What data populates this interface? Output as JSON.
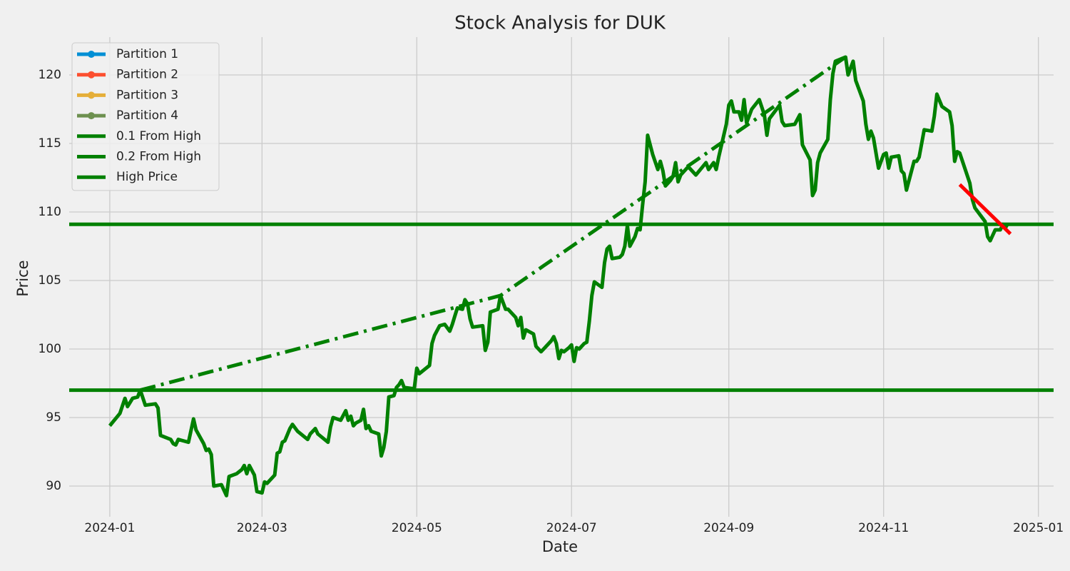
{
  "chart_data": {
    "type": "line",
    "title": "Stock Analysis for DUK",
    "xlabel": "Date",
    "ylabel": "Price",
    "xlim": [
      "2023-12-16",
      "2025-01-07"
    ],
    "ylim": [
      87.76,
      122.76
    ],
    "xticks": [
      {
        "value": "2024-01-01",
        "label": "2024-01"
      },
      {
        "value": "2024-03-01",
        "label": "2024-03"
      },
      {
        "value": "2024-05-01",
        "label": "2024-05"
      },
      {
        "value": "2024-07-01",
        "label": "2024-07"
      },
      {
        "value": "2024-09-01",
        "label": "2024-09"
      },
      {
        "value": "2024-11-01",
        "label": "2024-11"
      },
      {
        "value": "2025-01-01",
        "label": "2025-01"
      }
    ],
    "yticks": [
      90,
      95,
      100,
      105,
      110,
      115,
      120
    ],
    "grid": true,
    "legend_position": "upper left",
    "legend": [
      {
        "name": "Partition 1",
        "color": "#008fd5",
        "marker": "o"
      },
      {
        "name": "Partition 2",
        "color": "#fc4f30",
        "marker": "o"
      },
      {
        "name": "Partition 3",
        "color": "#e5ae38",
        "marker": "o"
      },
      {
        "name": "Partition 4",
        "color": "#6d904f",
        "marker": "o"
      }
    ],
    "hlines": [
      {
        "name": "0.1 From High",
        "value": 109.1,
        "color": "green"
      },
      {
        "name": "0.2 From High",
        "value": 97.0,
        "color": "green"
      }
    ],
    "series": [
      {
        "color": "green",
        "style": "solid",
        "x": [
          "2024-01-01",
          "2024-01-05",
          "2024-01-07",
          "2024-01-08",
          "2024-01-10",
          "2024-01-12",
          "2024-01-13",
          "2024-01-15",
          "2024-01-19",
          "2024-01-20",
          "2024-01-21",
          "2024-01-25",
          "2024-01-26",
          "2024-01-27",
          "2024-01-28",
          "2024-02-01",
          "2024-02-03",
          "2024-02-04",
          "2024-02-07",
          "2024-02-08",
          "2024-02-09",
          "2024-02-10",
          "2024-02-11",
          "2024-02-14",
          "2024-02-16",
          "2024-02-17",
          "2024-02-20",
          "2024-02-22",
          "2024-02-23",
          "2024-02-24",
          "2024-02-25",
          "2024-02-27",
          "2024-02-28",
          "2024-03-01",
          "2024-03-02",
          "2024-03-03",
          "2024-03-06",
          "2024-03-07",
          "2024-03-08",
          "2024-03-09",
          "2024-03-10",
          "2024-03-12",
          "2024-03-13",
          "2024-03-15",
          "2024-03-19",
          "2024-03-20",
          "2024-03-22",
          "2024-03-23",
          "2024-03-27",
          "2024-03-28",
          "2024-03-29",
          "2024-04-01",
          "2024-04-03",
          "2024-04-04",
          "2024-04-05",
          "2024-04-06",
          "2024-04-07",
          "2024-04-09",
          "2024-04-10",
          "2024-04-11",
          "2024-04-12",
          "2024-04-13",
          "2024-04-16",
          "2024-04-17",
          "2024-04-18",
          "2024-04-19",
          "2024-04-20",
          "2024-04-22",
          "2024-04-23",
          "2024-04-24",
          "2024-04-25",
          "2024-04-26",
          "2024-04-30",
          "2024-05-01",
          "2024-05-02",
          "2024-05-04",
          "2024-05-06",
          "2024-05-07",
          "2024-05-08",
          "2024-05-10",
          "2024-05-12",
          "2024-05-14",
          "2024-05-15",
          "2024-05-16",
          "2024-05-17",
          "2024-05-19",
          "2024-05-20",
          "2024-05-21",
          "2024-05-22",
          "2024-05-23",
          "2024-05-27",
          "2024-05-28",
          "2024-05-29",
          "2024-05-30",
          "2024-06-02",
          "2024-06-03",
          "2024-06-05",
          "2024-06-06",
          "2024-06-09",
          "2024-06-10",
          "2024-06-11",
          "2024-06-12",
          "2024-06-13",
          "2024-06-16",
          "2024-06-17",
          "2024-06-19",
          "2024-06-23",
          "2024-06-24",
          "2024-06-25",
          "2024-06-26",
          "2024-06-27",
          "2024-06-28",
          "2024-06-30",
          "2024-07-01",
          "2024-07-02",
          "2024-07-03",
          "2024-07-04",
          "2024-07-06",
          "2024-07-07",
          "2024-07-08",
          "2024-07-09",
          "2024-07-10",
          "2024-07-13",
          "2024-07-14",
          "2024-07-15",
          "2024-07-16",
          "2024-07-17",
          "2024-07-20",
          "2024-07-21",
          "2024-07-22",
          "2024-07-23",
          "2024-07-24",
          "2024-07-26",
          "2024-07-27",
          "2024-07-28",
          "2024-07-29",
          "2024-07-30",
          "2024-07-31",
          "2024-08-02",
          "2024-08-04",
          "2024-08-05",
          "2024-08-06",
          "2024-08-07",
          "2024-08-09",
          "2024-08-10",
          "2024-08-11",
          "2024-08-12",
          "2024-08-13",
          "2024-08-16",
          "2024-08-17",
          "2024-08-19",
          "2024-08-23",
          "2024-08-24",
          "2024-08-26",
          "2024-08-27",
          "2024-08-28",
          "2024-08-31",
          "2024-09-01",
          "2024-09-02",
          "2024-09-03",
          "2024-09-05",
          "2024-09-06",
          "2024-09-07",
          "2024-09-08",
          "2024-09-09",
          "2024-09-10",
          "2024-09-13",
          "2024-09-15",
          "2024-09-16",
          "2024-09-17",
          "2024-09-21",
          "2024-09-22",
          "2024-09-23",
          "2024-09-27",
          "2024-09-29",
          "2024-09-30",
          "2024-10-03",
          "2024-10-04",
          "2024-10-05",
          "2024-10-06",
          "2024-10-07",
          "2024-10-10",
          "2024-10-11",
          "2024-10-12",
          "2024-10-13",
          "2024-10-17",
          "2024-10-18",
          "2024-10-20",
          "2024-10-21",
          "2024-10-24",
          "2024-10-25",
          "2024-10-26",
          "2024-10-27",
          "2024-10-28",
          "2024-10-30",
          "2024-11-01",
          "2024-11-02",
          "2024-11-03",
          "2024-11-04",
          "2024-11-07",
          "2024-11-08",
          "2024-11-09",
          "2024-11-10",
          "2024-11-11",
          "2024-11-13",
          "2024-11-14",
          "2024-11-15",
          "2024-11-17",
          "2024-11-20",
          "2024-11-21",
          "2024-11-22",
          "2024-11-24",
          "2024-11-27",
          "2024-11-28",
          "2024-11-29",
          "2024-11-30",
          "2024-12-01",
          "2024-12-05",
          "2024-12-06",
          "2024-12-07",
          "2024-12-11",
          "2024-12-12",
          "2024-12-13",
          "2024-12-15",
          "2024-12-17",
          "2024-12-18",
          "2024-12-20"
        ],
        "values": [
          94.4,
          95.3,
          96.4,
          95.8,
          96.4,
          96.5,
          97.0,
          95.9,
          96.0,
          95.7,
          93.7,
          93.4,
          93.1,
          93.0,
          93.4,
          93.2,
          94.9,
          94.1,
          93.1,
          92.6,
          92.7,
          92.3,
          90.0,
          90.1,
          89.3,
          90.7,
          90.9,
          91.2,
          91.5,
          90.9,
          91.5,
          90.8,
          89.6,
          89.5,
          90.3,
          90.2,
          90.8,
          92.4,
          92.5,
          93.2,
          93.3,
          94.2,
          94.5,
          94.0,
          93.4,
          93.8,
          94.2,
          93.8,
          93.2,
          94.3,
          95.0,
          94.8,
          95.5,
          94.8,
          95.1,
          94.4,
          94.6,
          94.8,
          95.6,
          94.2,
          94.4,
          94.0,
          93.8,
          92.2,
          92.8,
          94.0,
          96.5,
          96.6,
          97.2,
          97.4,
          97.7,
          97.2,
          97.1,
          98.6,
          98.2,
          98.5,
          98.8,
          100.4,
          101.0,
          101.7,
          101.8,
          101.3,
          101.8,
          102.4,
          103.0,
          102.9,
          103.6,
          103.3,
          102.2,
          101.6,
          101.7,
          99.9,
          100.5,
          102.7,
          102.9,
          103.9,
          102.9,
          102.9,
          102.3,
          101.7,
          102.3,
          100.8,
          101.4,
          101.1,
          100.2,
          99.8,
          100.6,
          100.9,
          100.4,
          99.3,
          99.9,
          99.8,
          100.1,
          100.3,
          99.1,
          100.1,
          100.0,
          100.4,
          100.5,
          102.0,
          103.9,
          104.9,
          104.5,
          106.3,
          107.3,
          107.5,
          106.6,
          106.7,
          106.9,
          107.5,
          109.0,
          107.5,
          108.2,
          108.8,
          108.7,
          110.5,
          112.2,
          115.6,
          114.2,
          113.1,
          113.7,
          113.0,
          111.9,
          112.3,
          112.6,
          113.6,
          112.2,
          112.7,
          113.3,
          113.1,
          112.7,
          113.6,
          113.1,
          113.6,
          113.1,
          114.0,
          116.4,
          117.8,
          118.1,
          117.3,
          117.3,
          116.7,
          118.2,
          116.5,
          117.0,
          117.5,
          118.2,
          117.1,
          115.6,
          116.8,
          117.8,
          116.6,
          116.3,
          116.4,
          117.1,
          114.9,
          113.8,
          111.2,
          111.6,
          113.6,
          114.3,
          115.3,
          118.2,
          120.1,
          121.0,
          121.3,
          120.0,
          121.0,
          119.6,
          118.1,
          116.4,
          115.3,
          115.9,
          115.4,
          113.2,
          114.2,
          114.3,
          113.2,
          114.0,
          114.1,
          113.0,
          112.8,
          111.6,
          112.3,
          113.7,
          113.7,
          114.0,
          116.0,
          115.9,
          117.0,
          118.6,
          117.7,
          117.3,
          116.3,
          113.7,
          114.4,
          114.3,
          112.1,
          110.9,
          110.3,
          109.3,
          108.2,
          107.9,
          108.7,
          108.7,
          109.1,
          108.9
        ]
      },
      {
        "name": "High Price",
        "color": "green",
        "style": "dashdot",
        "x": [
          "2024-01-13",
          "2024-06-03",
          "2024-10-17"
        ],
        "values": [
          97.0,
          103.9,
          121.3
        ]
      },
      {
        "color": "red",
        "style": "solid",
        "x": [
          "2024-12-01",
          "2024-12-21"
        ],
        "values": [
          112.0,
          108.4
        ]
      }
    ]
  }
}
